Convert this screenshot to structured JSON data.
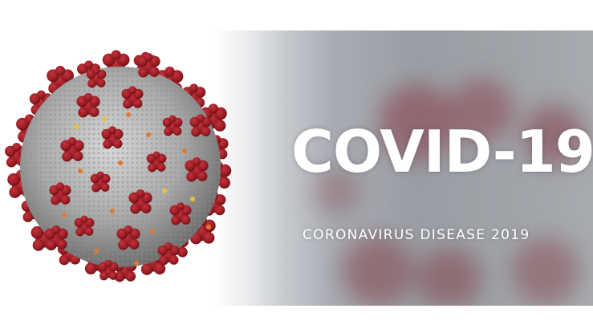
{
  "banner": {
    "title": "COVID-19",
    "subtitle": "CORONAVIRUS DISEASE 2019"
  },
  "colors": {
    "spike_red": "#9b1b22",
    "virion_grey": "#b4b4b4",
    "accent_orange": "#e07a2c",
    "accent_yellow": "#e6c23a",
    "text": "#ffffff"
  }
}
